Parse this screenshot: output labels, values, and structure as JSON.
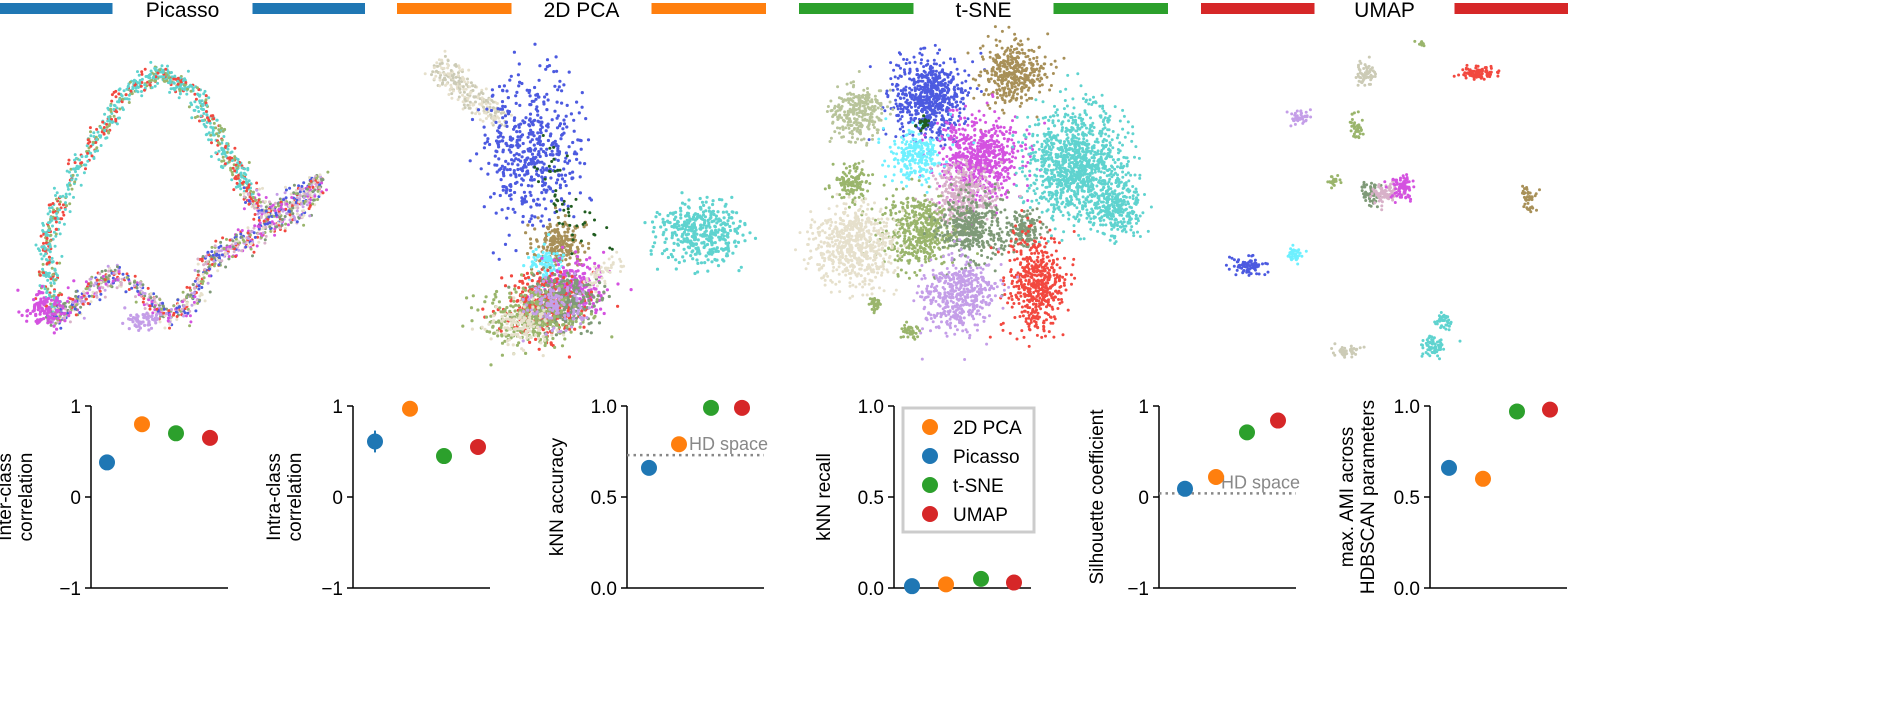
{
  "colors": {
    "Picasso": "#1f77b4",
    "2D PCA": "#ff7f0e",
    "t-SNE": "#2ca02c",
    "UMAP": "#d62728",
    "hd_line": "#888888"
  },
  "embedding_panels": [
    {
      "title": "Picasso",
      "color": "#1f77b4"
    },
    {
      "title": "2D PCA",
      "color": "#ff7f0e"
    },
    {
      "title": "t-SNE",
      "color": "#2ca02c"
    },
    {
      "title": "UMAP",
      "color": "#d62728"
    }
  ],
  "cluster_palette": [
    "#5fd3cf",
    "#4c5ae0",
    "#9ab56c",
    "#c49ee8",
    "#d452e0",
    "#f2483f",
    "#a89058",
    "#7f9a78",
    "#e6e0cc",
    "#6ef0ff",
    "#d8b1c9",
    "#1f5c1f",
    "#b8c49a",
    "#cccbb6"
  ],
  "legend": {
    "items": [
      {
        "label": "2D PCA",
        "color": "#ff7f0e"
      },
      {
        "label": "Picasso",
        "color": "#1f77b4"
      },
      {
        "label": "t-SNE",
        "color": "#2ca02c"
      },
      {
        "label": "UMAP",
        "color": "#d62728"
      }
    ]
  },
  "chart_data": [
    {
      "type": "scatter",
      "ylabel": "Inter-class\ncorrelation",
      "ylim": [
        -1,
        1
      ],
      "yticks": [
        "1",
        "0",
        "−1"
      ],
      "ytick_values": [
        1,
        0,
        -1
      ],
      "points": [
        {
          "method": "Picasso",
          "value": 0.38,
          "err": 0.05
        },
        {
          "method": "2D PCA",
          "value": 0.8
        },
        {
          "method": "t-SNE",
          "value": 0.7
        },
        {
          "method": "UMAP",
          "value": 0.65
        }
      ]
    },
    {
      "type": "scatter",
      "ylabel": "Intra-class\ncorrelation",
      "ylim": [
        -1,
        1
      ],
      "yticks": [
        "1",
        "0",
        "−1"
      ],
      "ytick_values": [
        1,
        0,
        -1
      ],
      "points": [
        {
          "method": "Picasso",
          "value": 0.61,
          "err": 0.12
        },
        {
          "method": "2D PCA",
          "value": 0.97
        },
        {
          "method": "t-SNE",
          "value": 0.45
        },
        {
          "method": "UMAP",
          "value": 0.55
        }
      ]
    },
    {
      "type": "scatter",
      "ylabel": "kNN accuracy",
      "ylim": [
        0,
        1
      ],
      "yticks": [
        "1.0",
        "0.5",
        "0.0"
      ],
      "ytick_values": [
        1,
        0.5,
        0
      ],
      "hd_reference": {
        "value": 0.73,
        "label": "HD space"
      },
      "points": [
        {
          "method": "Picasso",
          "value": 0.66,
          "err": 0.04
        },
        {
          "method": "2D PCA",
          "value": 0.79
        },
        {
          "method": "t-SNE",
          "value": 0.99
        },
        {
          "method": "UMAP",
          "value": 0.99
        }
      ]
    },
    {
      "type": "scatter",
      "ylabel": "kNN recall",
      "ylim": [
        0,
        1
      ],
      "yticks": [
        "1.0",
        "0.5",
        "0.0"
      ],
      "ytick_values": [
        1,
        0.5,
        0
      ],
      "points": [
        {
          "method": "Picasso",
          "value": 0.01
        },
        {
          "method": "2D PCA",
          "value": 0.02
        },
        {
          "method": "t-SNE",
          "value": 0.05
        },
        {
          "method": "UMAP",
          "value": 0.03
        }
      ]
    },
    {
      "type": "scatter",
      "ylabel": "Silhouette coefficient",
      "ylim": [
        -1,
        1
      ],
      "yticks": [
        "1",
        "0",
        "−1"
      ],
      "ytick_values": [
        1,
        0,
        -1
      ],
      "hd_reference": {
        "value": 0.04,
        "label": "HD space"
      },
      "points": [
        {
          "method": "Picasso",
          "value": 0.09
        },
        {
          "method": "2D PCA",
          "value": 0.22
        },
        {
          "method": "t-SNE",
          "value": 0.71
        },
        {
          "method": "UMAP",
          "value": 0.84
        }
      ]
    },
    {
      "type": "scatter",
      "ylabel": "max. AMI across\nHDBSCAN parameters",
      "ylim": [
        0,
        1
      ],
      "yticks": [
        "1.0",
        "0.5",
        "0.0"
      ],
      "ytick_values": [
        1,
        0.5,
        0
      ],
      "points": [
        {
          "method": "Picasso",
          "value": 0.66
        },
        {
          "method": "2D PCA",
          "value": 0.6
        },
        {
          "method": "t-SNE",
          "value": 0.97
        },
        {
          "method": "UMAP",
          "value": 0.98
        }
      ]
    }
  ]
}
